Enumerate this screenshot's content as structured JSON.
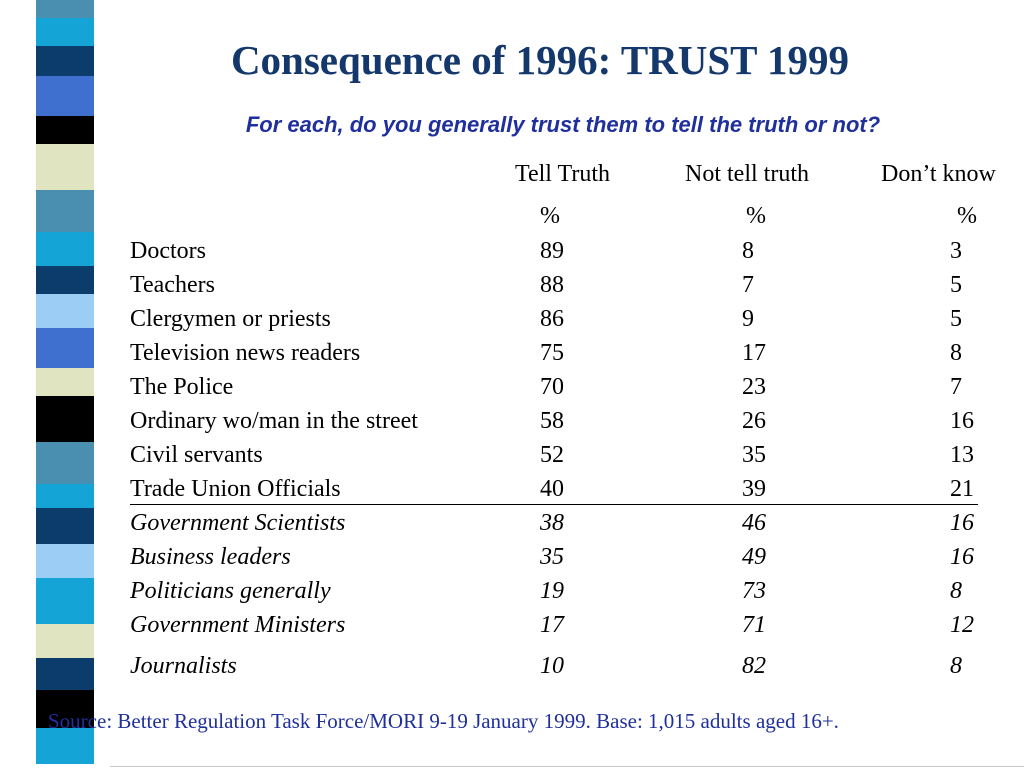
{
  "slide": {
    "title": "Consequence of 1996: TRUST 1999",
    "subtitle": "For each, do you generally trust them to tell the truth or not?",
    "source": "Source: Better Regulation Task Force/MORI 9-19 January 1999. Base: 1,015 adults aged 16+."
  },
  "table": {
    "columns": [
      {
        "label": "Tell Truth",
        "unit": "%"
      },
      {
        "label": "Not tell truth",
        "unit": "%"
      },
      {
        "label": "Don’t know",
        "unit": "%"
      }
    ],
    "rows": [
      {
        "label": "Doctors",
        "values": [
          "89",
          "8",
          "3"
        ],
        "italic": false
      },
      {
        "label": "Teachers",
        "values": [
          "88",
          "7",
          "5"
        ],
        "italic": false
      },
      {
        "label": "Clergymen or priests",
        "values": [
          "86",
          "9",
          "5"
        ],
        "italic": false
      },
      {
        "label": "Television news readers",
        "values": [
          "75",
          "17",
          "8"
        ],
        "italic": false
      },
      {
        "label": "The Police",
        "values": [
          "70",
          "23",
          "7"
        ],
        "italic": false
      },
      {
        "label": "Ordinary wo/man in the street",
        "values": [
          "58",
          "26",
          "16"
        ],
        "italic": false
      },
      {
        "label": "Civil servants",
        "values": [
          "52",
          "35",
          "13"
        ],
        "italic": false
      },
      {
        "label": "Trade Union Officials",
        "values": [
          "40",
          "39",
          "21"
        ],
        "italic": false
      },
      {
        "label": "Government Scientists",
        "values": [
          "38",
          "46",
          "16"
        ],
        "italic": true
      },
      {
        "label": "Business leaders",
        "values": [
          "35",
          "49",
          "16"
        ],
        "italic": true
      },
      {
        "label": "Politicians generally",
        "values": [
          "19",
          "73",
          "8"
        ],
        "italic": true
      },
      {
        "label": "Government Ministers",
        "values": [
          "17",
          "71",
          "12"
        ],
        "italic": true
      },
      {
        "label": "Journalists",
        "values": [
          "10",
          "82",
          "8"
        ],
        "italic": true
      }
    ]
  },
  "decoration": {
    "stripe_colors": [
      "#4a8fb0",
      "#15a4d6",
      "#0b3c6c",
      "#3f6fcf",
      "#000000",
      "#e0e4c0",
      "#4a8fb0",
      "#15a4d6",
      "#0b3c6c",
      "#9ccdf5",
      "#3f6fcf",
      "#e0e4c0",
      "#000000",
      "#4a8fb0",
      "#15a4d6",
      "#0b3c6c",
      "#9ccdf5",
      "#15a4d6",
      "#e0e4c0",
      "#0b3c6c",
      "#000000",
      "#15a4d6"
    ]
  }
}
